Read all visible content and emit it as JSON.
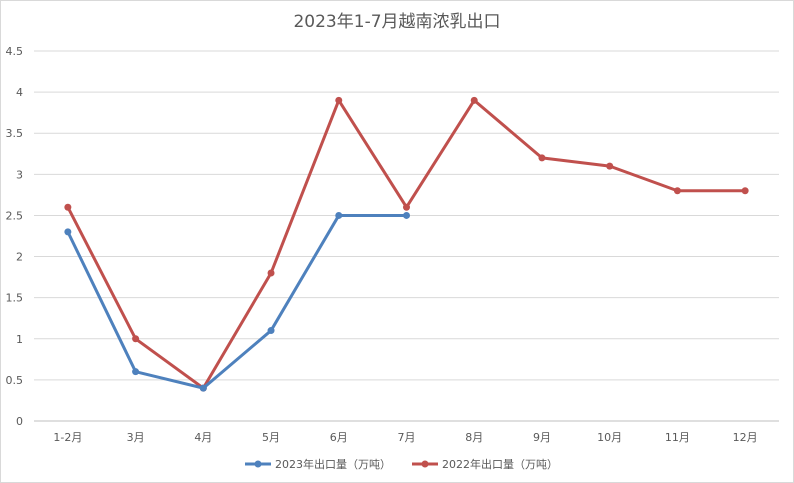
{
  "chart_data": {
    "type": "line",
    "title": "2023年1-7月越南浓乳出口",
    "categories": [
      "1-2月",
      "3月",
      "4月",
      "5月",
      "6月",
      "7月",
      "8月",
      "9月",
      "10月",
      "11月",
      "12月"
    ],
    "series": [
      {
        "name": "2023年出口量（万吨）",
        "color": "#4e81bd",
        "values": [
          2.3,
          0.6,
          0.4,
          1.1,
          2.5,
          2.5,
          null,
          null,
          null,
          null,
          null
        ]
      },
      {
        "name": "2022年出口量（万吨）",
        "color": "#c0504d",
        "values": [
          2.6,
          1.0,
          0.4,
          1.8,
          3.9,
          2.6,
          3.9,
          3.2,
          3.1,
          2.8,
          2.8
        ]
      }
    ],
    "xlabel": "",
    "ylabel": "",
    "ylim": [
      0,
      4.5
    ],
    "yticks": [
      "0",
      "0.5",
      "1",
      "1.5",
      "2",
      "2.5",
      "3",
      "3.5",
      "4",
      "4.5"
    ],
    "grid": true,
    "legend_position": "bottom"
  }
}
